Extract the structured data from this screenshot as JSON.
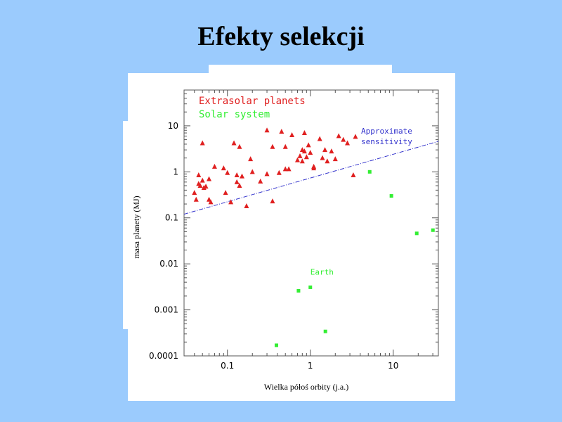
{
  "slide": {
    "title": "Efekty selekcji"
  },
  "colors": {
    "background": "#9bcbfd",
    "extrasolar": "#e02020",
    "solar": "#33ee33",
    "sensitivity": "#3333cc"
  },
  "chart_data": {
    "type": "scatter",
    "title": "",
    "xlabel": "Wielka półoś orbity (j.a.)",
    "ylabel": "masa planety (MJ)",
    "xscale": "log",
    "yscale": "log",
    "xlim": [
      0.03,
      35
    ],
    "ylim": [
      0.0001,
      60
    ],
    "xticks": [
      {
        "v": 0.1,
        "label": "0.1"
      },
      {
        "v": 1,
        "label": "1"
      },
      {
        "v": 10,
        "label": "10"
      }
    ],
    "yticks": [
      {
        "v": 0.0001,
        "label": "0.0001"
      },
      {
        "v": 0.001,
        "label": "0.001"
      },
      {
        "v": 0.01,
        "label": "0.01"
      },
      {
        "v": 0.1,
        "label": "0.1"
      },
      {
        "v": 1,
        "label": "1"
      },
      {
        "v": 10,
        "label": "10"
      }
    ],
    "legend": {
      "placement": "top-left",
      "entries": [
        {
          "label": "Extrasolar planets",
          "color": "#e02020"
        },
        {
          "label": "Solar system",
          "color": "#33ee33"
        }
      ]
    },
    "series": [
      {
        "name": "Extrasolar planets",
        "marker": "triangle",
        "color": "#e02020",
        "points": [
          [
            0.04,
            0.35
          ],
          [
            0.042,
            0.25
          ],
          [
            0.045,
            0.55
          ],
          [
            0.045,
            0.85
          ],
          [
            0.047,
            0.5
          ],
          [
            0.05,
            4.2
          ],
          [
            0.05,
            0.65
          ],
          [
            0.052,
            0.45
          ],
          [
            0.055,
            0.48
          ],
          [
            0.06,
            0.7
          ],
          [
            0.06,
            0.25
          ],
          [
            0.063,
            0.22
          ],
          [
            0.07,
            1.3
          ],
          [
            0.09,
            1.2
          ],
          [
            0.1,
            0.95
          ],
          [
            0.095,
            0.35
          ],
          [
            0.11,
            0.22
          ],
          [
            0.12,
            4.2
          ],
          [
            0.13,
            0.85
          ],
          [
            0.13,
            0.6
          ],
          [
            0.14,
            3.5
          ],
          [
            0.14,
            0.5
          ],
          [
            0.15,
            0.8
          ],
          [
            0.17,
            0.18
          ],
          [
            0.19,
            1.9
          ],
          [
            0.2,
            1.0
          ],
          [
            0.25,
            0.62
          ],
          [
            0.3,
            8.0
          ],
          [
            0.3,
            0.9
          ],
          [
            0.35,
            0.23
          ],
          [
            0.35,
            3.5
          ],
          [
            0.42,
            0.95
          ],
          [
            0.45,
            7.5
          ],
          [
            0.5,
            3.5
          ],
          [
            0.5,
            1.15
          ],
          [
            0.55,
            1.15
          ],
          [
            0.6,
            6.3
          ],
          [
            0.7,
            1.8
          ],
          [
            0.75,
            2.2
          ],
          [
            0.8,
            3.0
          ],
          [
            0.8,
            1.7
          ],
          [
            0.85,
            7.0
          ],
          [
            0.85,
            2.8
          ],
          [
            0.9,
            2.1
          ],
          [
            0.95,
            3.8
          ],
          [
            1.0,
            2.6
          ],
          [
            1.1,
            1.3
          ],
          [
            1.1,
            1.2
          ],
          [
            1.3,
            5.2
          ],
          [
            1.4,
            2.0
          ],
          [
            1.5,
            3.0
          ],
          [
            1.6,
            1.7
          ],
          [
            1.8,
            2.8
          ],
          [
            2.0,
            1.9
          ],
          [
            2.2,
            6.0
          ],
          [
            2.5,
            5.0
          ],
          [
            2.8,
            4.2
          ],
          [
            3.3,
            0.85
          ],
          [
            3.5,
            5.8
          ]
        ]
      },
      {
        "name": "Solar system",
        "marker": "square",
        "color": "#33ee33",
        "points": [
          [
            0.39,
            0.00017
          ],
          [
            0.72,
            0.0026
          ],
          [
            1.0,
            0.0031
          ],
          [
            1.52,
            0.00034
          ],
          [
            5.2,
            1.0
          ],
          [
            9.5,
            0.3
          ],
          [
            19.2,
            0.046
          ],
          [
            30.1,
            0.054
          ]
        ]
      }
    ],
    "sensitivity_line": {
      "label_lines": [
        "Approximate",
        "sensitivity"
      ],
      "from": [
        0.03,
        0.12
      ],
      "to": [
        35,
        4.6
      ],
      "style": "dash-dot"
    },
    "annotations": [
      {
        "text": "Earth",
        "x": 1.0,
        "y": 0.0058
      }
    ]
  }
}
